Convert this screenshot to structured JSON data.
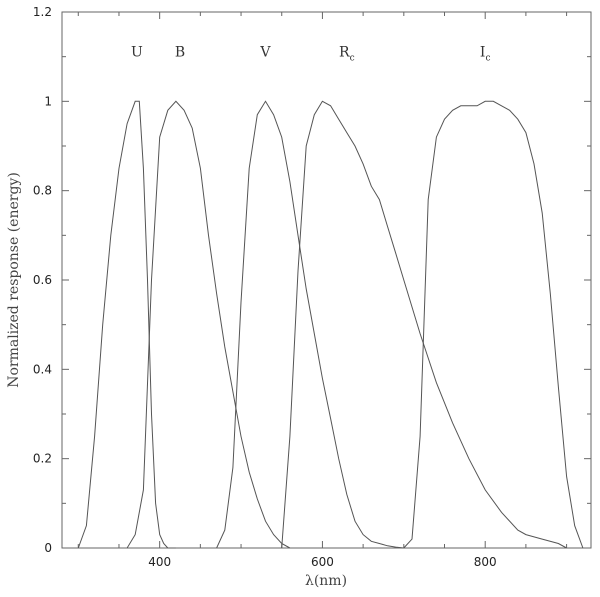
{
  "chart_data": {
    "type": "line",
    "title": "",
    "xlabel": "λ(nm)",
    "ylabel": "Normalized response (energy)",
    "xlim": [
      280,
      930
    ],
    "ylim": [
      0,
      1.2
    ],
    "x_ticks": [
      400,
      600,
      800
    ],
    "y_ticks": [
      0,
      0.2,
      0.4,
      0.6,
      0.8,
      1,
      1.2
    ],
    "x_tick_labels": [
      "400",
      "600",
      "800"
    ],
    "y_tick_labels": [
      "0",
      "0.2",
      "0.4",
      "0.6",
      "0.8",
      "1",
      "1.2"
    ],
    "grid": false,
    "line_color": "#555555",
    "series": [
      {
        "name": "U",
        "subscript": "",
        "label_x": 372,
        "label_y": 1.1,
        "x": [
          300,
          310,
          320,
          330,
          340,
          350,
          360,
          370,
          375,
          380,
          385,
          390,
          395,
          400,
          405,
          410,
          420
        ],
        "y": [
          0.0,
          0.05,
          0.25,
          0.5,
          0.7,
          0.85,
          0.95,
          1.0,
          1.0,
          0.85,
          0.6,
          0.3,
          0.1,
          0.03,
          0.01,
          0.0,
          0.0
        ]
      },
      {
        "name": "B",
        "subscript": "",
        "label_x": 425,
        "label_y": 1.1,
        "x": [
          360,
          370,
          380,
          390,
          400,
          410,
          420,
          430,
          440,
          450,
          460,
          470,
          480,
          490,
          500,
          510,
          520,
          530,
          540,
          550,
          560
        ],
        "y": [
          0.0,
          0.03,
          0.13,
          0.6,
          0.92,
          0.98,
          1.0,
          0.98,
          0.94,
          0.85,
          0.7,
          0.57,
          0.45,
          0.35,
          0.25,
          0.17,
          0.11,
          0.06,
          0.03,
          0.01,
          0.0
        ]
      },
      {
        "name": "V",
        "subscript": "",
        "label_x": 530,
        "label_y": 1.1,
        "x": [
          470,
          480,
          490,
          500,
          510,
          520,
          530,
          540,
          550,
          560,
          570,
          580,
          590,
          600,
          610,
          620,
          630,
          640,
          650,
          660,
          670,
          680,
          690,
          700
        ],
        "y": [
          0.0,
          0.04,
          0.18,
          0.55,
          0.85,
          0.97,
          1.0,
          0.97,
          0.92,
          0.82,
          0.7,
          0.58,
          0.48,
          0.38,
          0.29,
          0.2,
          0.12,
          0.06,
          0.03,
          0.015,
          0.01,
          0.005,
          0.002,
          0.0
        ]
      },
      {
        "name": "R",
        "subscript": "c",
        "label_x": 630,
        "label_y": 1.1,
        "x": [
          550,
          560,
          570,
          580,
          590,
          600,
          610,
          620,
          630,
          640,
          650,
          660,
          670,
          680,
          690,
          700,
          720,
          740,
          760,
          780,
          800,
          820,
          840,
          850,
          870,
          890,
          900
        ],
        "y": [
          0.0,
          0.25,
          0.62,
          0.9,
          0.97,
          1.0,
          0.99,
          0.96,
          0.93,
          0.9,
          0.86,
          0.81,
          0.78,
          0.72,
          0.66,
          0.6,
          0.48,
          0.37,
          0.28,
          0.2,
          0.13,
          0.08,
          0.04,
          0.03,
          0.02,
          0.01,
          0.0
        ]
      },
      {
        "name": "I",
        "subscript": "c",
        "label_x": 800,
        "label_y": 1.1,
        "x": [
          700,
          710,
          720,
          730,
          740,
          750,
          760,
          770,
          780,
          790,
          800,
          810,
          820,
          830,
          840,
          850,
          860,
          870,
          880,
          890,
          900,
          910,
          920
        ],
        "y": [
          0.0,
          0.02,
          0.25,
          0.78,
          0.92,
          0.96,
          0.98,
          0.99,
          0.99,
          0.99,
          1.0,
          1.0,
          0.99,
          0.98,
          0.96,
          0.93,
          0.86,
          0.75,
          0.57,
          0.36,
          0.16,
          0.05,
          0.0
        ]
      }
    ]
  }
}
